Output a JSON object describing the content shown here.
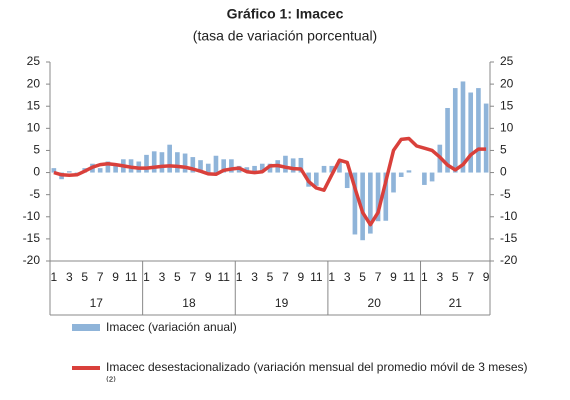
{
  "chart_data": {
    "type": "bar-line",
    "title": "Gráfico 1: Imacec",
    "subtitle": "(tasa de variación porcentual)",
    "categories": [
      "1",
      null,
      "3",
      null,
      "5",
      null,
      "7",
      null,
      "9",
      null,
      "11",
      null,
      "1",
      null,
      "3",
      null,
      "5",
      null,
      "7",
      null,
      "9",
      null,
      "11",
      null,
      "1",
      null,
      "3",
      null,
      "5",
      null,
      "7",
      null,
      "9",
      null,
      "11",
      null,
      "1",
      null,
      "3",
      null,
      "5",
      null,
      "7",
      null,
      "9",
      null,
      "11",
      null,
      "1",
      null,
      "3",
      null,
      "5",
      null,
      "7",
      null,
      "9"
    ],
    "years": [
      "17",
      "18",
      "19",
      "20",
      "21"
    ],
    "series": [
      {
        "name": "Imacec (variación anual)",
        "type": "bar",
        "color": "#8fb4d9",
        "values": [
          1.0,
          -1.5,
          0.3,
          -0.5,
          1.0,
          2.0,
          1.0,
          2.5,
          1.7,
          3.0,
          3.0,
          2.5,
          4.0,
          4.8,
          4.6,
          6.3,
          4.6,
          4.3,
          3.5,
          2.8,
          2.0,
          3.8,
          3.0,
          3.0,
          1.5,
          1.2,
          1.5,
          2.0,
          2.0,
          2.8,
          3.8,
          3.2,
          3.3,
          -3.2,
          -3.0,
          1.5,
          1.5,
          2.8,
          -3.5,
          -14.0,
          -15.3,
          -13.8,
          -11.0,
          -10.9,
          -4.5,
          -1.0,
          0.5,
          0.0,
          -2.8,
          -2.0,
          6.3,
          14.6,
          19.1,
          20.6,
          18.1,
          19.1,
          15.6
        ]
      },
      {
        "name": "Imacec desestacionalizado (variación mensual del promedio móvil de 3 meses)⁽²⁾",
        "type": "line",
        "color": "#d9403b",
        "values": [
          0.0,
          -0.5,
          -0.6,
          -0.5,
          0.3,
          1.2,
          1.8,
          2.0,
          1.8,
          1.5,
          1.2,
          1.0,
          1.0,
          1.2,
          1.4,
          1.5,
          1.4,
          1.2,
          0.8,
          0.3,
          -0.3,
          -0.4,
          0.5,
          0.8,
          1.0,
          0.2,
          0.0,
          0.2,
          1.5,
          1.6,
          1.2,
          0.9,
          0.8,
          -2.0,
          -3.5,
          -4.0,
          -0.5,
          2.8,
          2.3,
          -3.5,
          -9.0,
          -11.8,
          -9.0,
          -2.0,
          5.0,
          7.5,
          7.7,
          6.0,
          5.5,
          5.0,
          3.5,
          1.7,
          0.6,
          1.8,
          4.0,
          5.3,
          5.3
        ]
      }
    ],
    "ylim": [
      -20,
      25
    ],
    "yticks": [
      -20,
      -15,
      -10,
      -5,
      0,
      5,
      10,
      15,
      20,
      25
    ],
    "y2lim": [
      -20,
      25
    ],
    "y2ticks": [
      -20,
      -15,
      -10,
      -5,
      0,
      5,
      10,
      15,
      20,
      25
    ]
  }
}
